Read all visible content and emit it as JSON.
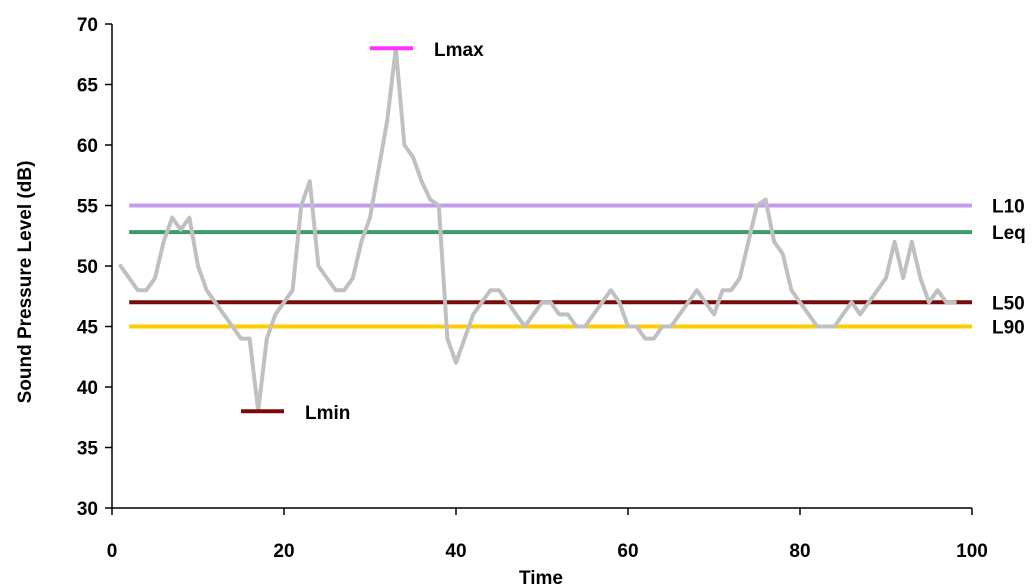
{
  "chart_data": {
    "type": "line",
    "xlabel": "Time",
    "ylabel": "Sound Pressure Level (dB)",
    "xlim": [
      0,
      100
    ],
    "ylim": [
      30,
      70
    ],
    "xticks": [
      0,
      20,
      40,
      60,
      80,
      100
    ],
    "yticks": [
      30,
      35,
      40,
      45,
      50,
      55,
      60,
      65,
      70
    ],
    "grid": false,
    "series": [
      {
        "color": "#c0c0c0",
        "x": [
          1,
          2,
          3,
          4,
          5,
          6,
          7,
          8,
          9,
          10,
          11,
          12,
          13,
          14,
          15,
          16,
          17,
          18,
          19,
          20,
          21,
          22,
          23,
          24,
          25,
          26,
          27,
          28,
          29,
          30,
          31,
          32,
          33,
          34,
          35,
          36,
          37,
          38,
          39,
          40,
          41,
          42,
          43,
          44,
          45,
          46,
          47,
          48,
          49,
          50,
          51,
          52,
          53,
          54,
          55,
          56,
          57,
          58,
          59,
          60,
          61,
          62,
          63,
          64,
          65,
          66,
          67,
          68,
          69,
          70,
          71,
          72,
          73,
          74,
          75,
          76,
          77,
          78,
          79,
          80,
          81,
          82,
          83,
          84,
          85,
          86,
          87,
          88,
          89,
          90,
          91,
          92,
          93,
          94,
          95,
          96,
          97,
          98
        ],
        "y": [
          50,
          49,
          48,
          48,
          49,
          52,
          54,
          53,
          54,
          50,
          48,
          47,
          46,
          45,
          44,
          44,
          38,
          44,
          46,
          47,
          48,
          55,
          57,
          50,
          49,
          48,
          48,
          49,
          52,
          54,
          58,
          62,
          68,
          60,
          59,
          57,
          55.5,
          55,
          44,
          42,
          44,
          46,
          47,
          48,
          48,
          47,
          46,
          45,
          46,
          47,
          47,
          46,
          46,
          45,
          45,
          46,
          47,
          48,
          47,
          45,
          45,
          44,
          44,
          45,
          45,
          46,
          47,
          48,
          47,
          46,
          48,
          48,
          49,
          52,
          55,
          55.5,
          52,
          51,
          48,
          47,
          46,
          45,
          45,
          45,
          46,
          47,
          46,
          47,
          48,
          49,
          52,
          49,
          52,
          49,
          47,
          48,
          47,
          47
        ]
      }
    ],
    "reference_lines": [
      {
        "label": "L10",
        "y": 55,
        "x_start": 2,
        "x_end": 100,
        "color": "#c39bf0"
      },
      {
        "label": "Leq",
        "y": 52.8,
        "x_start": 2,
        "x_end": 100,
        "color": "#3e9a6a"
      },
      {
        "label": "L50",
        "y": 47,
        "x_start": 2,
        "x_end": 100,
        "color": "#7b0a0a"
      },
      {
        "label": "L90",
        "y": 45,
        "x_start": 2,
        "x_end": 100,
        "color": "#ffcc00"
      }
    ],
    "markers": [
      {
        "label": "Lmax",
        "y": 68,
        "x_start": 30,
        "x_end": 35,
        "color": "#ff33ff"
      },
      {
        "label": "Lmin",
        "y": 38,
        "x_start": 15,
        "x_end": 20,
        "color": "#7b0a0a"
      }
    ]
  }
}
